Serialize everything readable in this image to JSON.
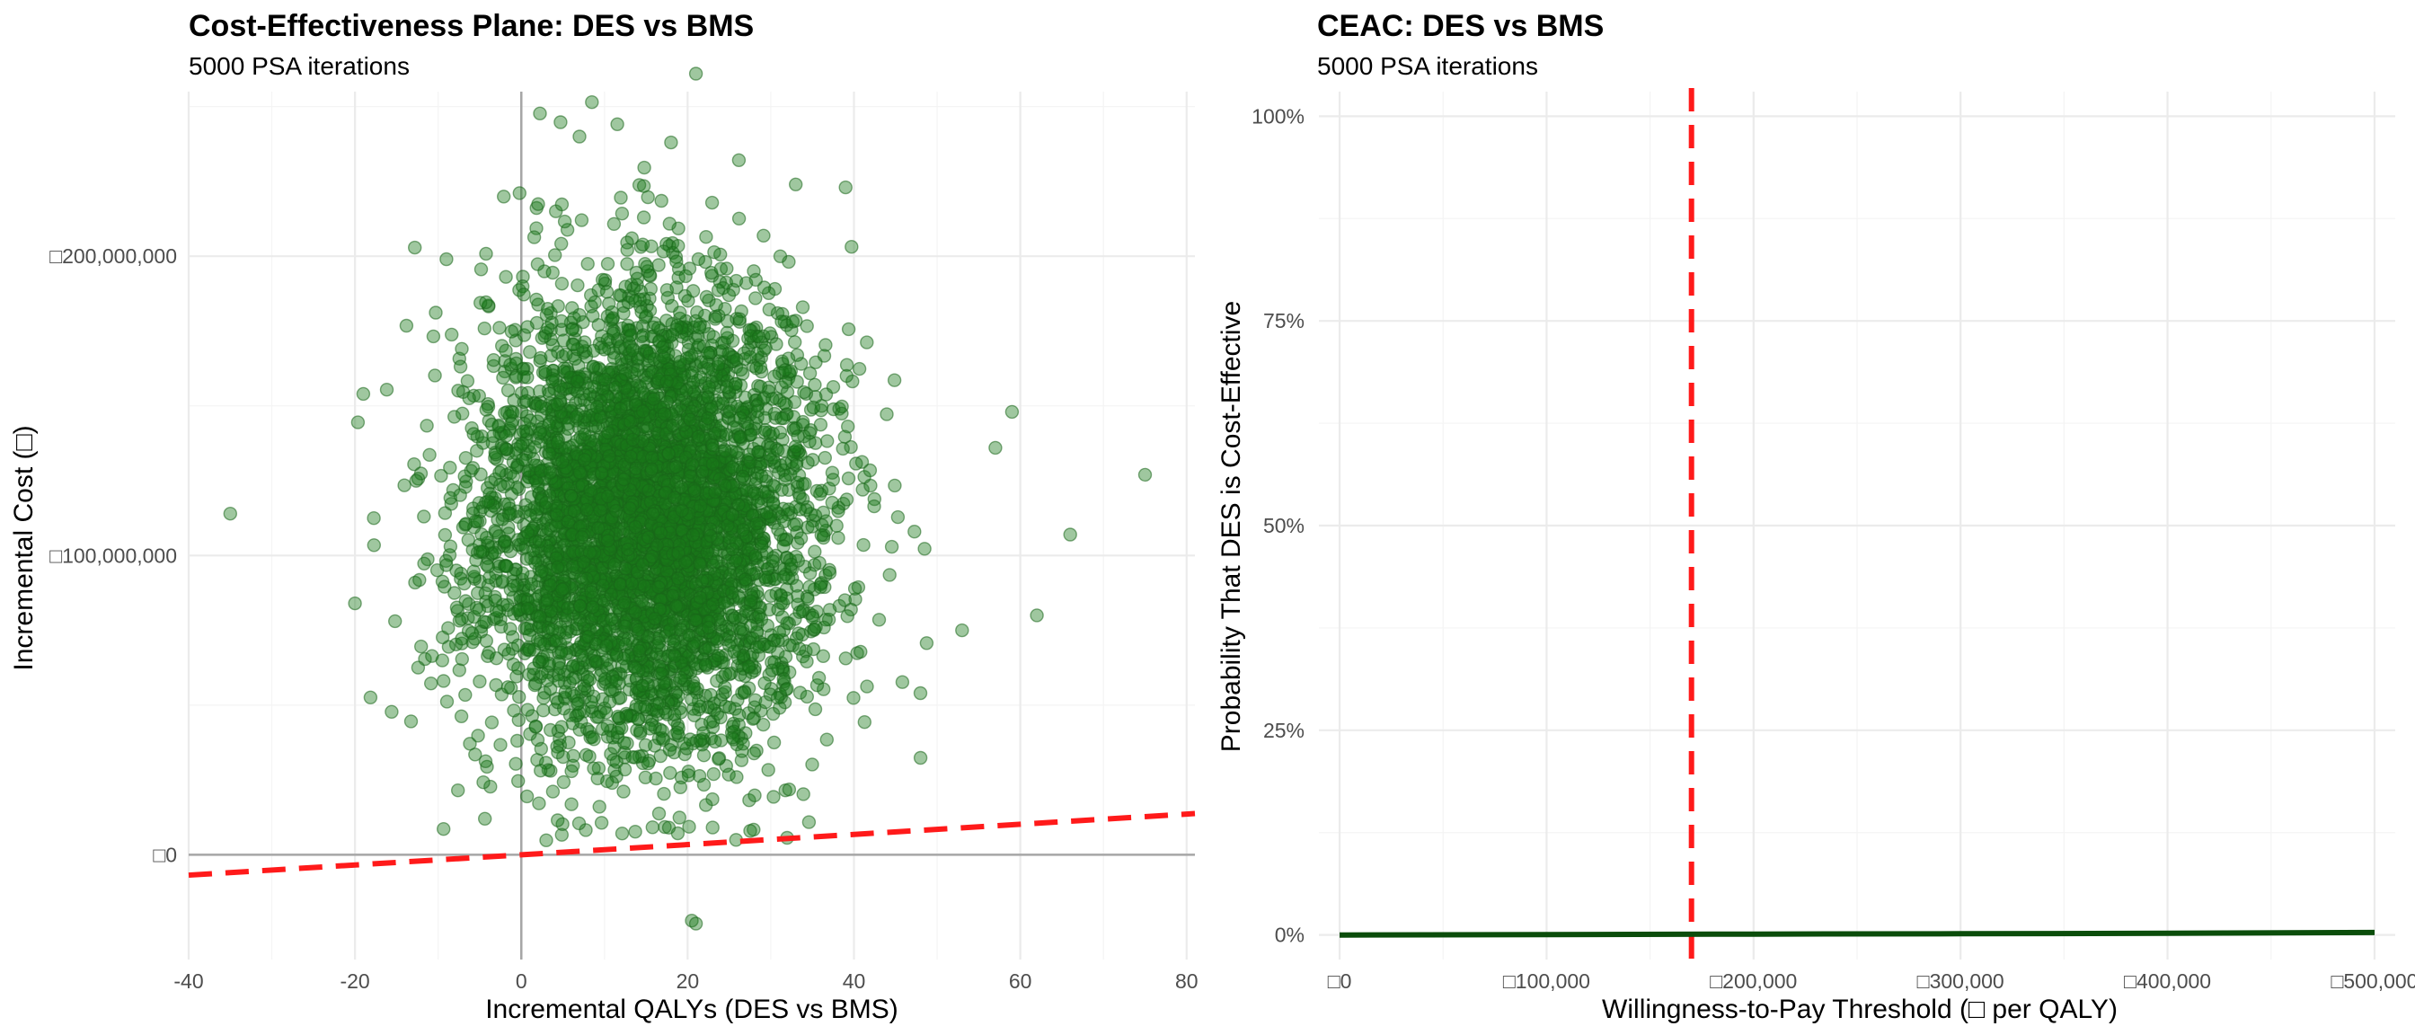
{
  "chart_data": [
    {
      "type": "scatter",
      "title": "Cost-Effectiveness Plane: DES vs BMS",
      "subtitle": "5000 PSA iterations",
      "xlabel": "Incremental QALYs (DES vs BMS)",
      "ylabel": "Incremental Cost (□)",
      "xlim": [
        -40,
        81
      ],
      "ylim": [
        -35000000,
        255000000
      ],
      "x_ticks": [
        -40,
        -20,
        0,
        20,
        40,
        60,
        80
      ],
      "x_tick_labels": [
        "-40",
        "-20",
        "0",
        "20",
        "40",
        "60",
        "80"
      ],
      "y_ticks": [
        0,
        100000000,
        200000000
      ],
      "y_tick_labels": [
        "□0",
        "□100,000,000",
        "□200,000,000"
      ],
      "n_points": 5000,
      "point_color": "#1a7a1a",
      "cloud": {
        "mean_x": 15,
        "sd_x": 10,
        "mean_y": 112000000,
        "sd_y": 38000000
      },
      "notable_points": [
        {
          "x": -35,
          "y": 114000000
        },
        {
          "x": 75,
          "y": 127000000
        },
        {
          "x": 66,
          "y": 107000000
        },
        {
          "x": 62,
          "y": 80000000
        },
        {
          "x": 59,
          "y": 148000000
        },
        {
          "x": 57,
          "y": 136000000
        },
        {
          "x": 21,
          "y": 261000000
        },
        {
          "x": 7,
          "y": 240000000
        },
        {
          "x": 18,
          "y": 238000000
        },
        {
          "x": 33,
          "y": 224000000
        },
        {
          "x": 39,
          "y": 223000000
        },
        {
          "x": 20.5,
          "y": -22000000
        },
        {
          "x": 21,
          "y": -23000000
        },
        {
          "x": -20,
          "y": 84000000
        },
        {
          "x": -19,
          "y": 154000000
        },
        {
          "x": 48,
          "y": 54000000
        },
        {
          "x": 53,
          "y": 75000000
        },
        {
          "x": -9,
          "y": 199000000
        }
      ],
      "threshold_line": {
        "color": "#ff1a1a",
        "wtp": 170000,
        "x_range": [
          -40,
          81
        ]
      }
    },
    {
      "type": "line",
      "title": "CEAC: DES vs BMS",
      "subtitle": "5000 PSA iterations",
      "xlabel": "Willingness-to-Pay Threshold (□ per QALY)",
      "ylabel": "Probability That DES is Cost-Effective",
      "xlim": [
        -10000,
        510000
      ],
      "ylim": [
        -0.03,
        1.03
      ],
      "x_ticks": [
        0,
        100000,
        200000,
        300000,
        400000,
        500000
      ],
      "x_tick_labels": [
        "□0",
        "□100,000",
        "□200,000",
        "□300,000",
        "□400,000",
        "□500,000"
      ],
      "y_ticks": [
        0,
        0.25,
        0.5,
        0.75,
        1.0
      ],
      "y_tick_labels": [
        "0%",
        "25%",
        "50%",
        "75%",
        "100%"
      ],
      "x": [
        0,
        100000,
        200000,
        300000,
        400000,
        500000
      ],
      "y": [
        0,
        0.0005,
        0.001,
        0.0015,
        0.002,
        0.003
      ],
      "line_color": "#0b4d0b",
      "vline": {
        "x": 170000,
        "color": "#ff1a1a"
      }
    }
  ]
}
